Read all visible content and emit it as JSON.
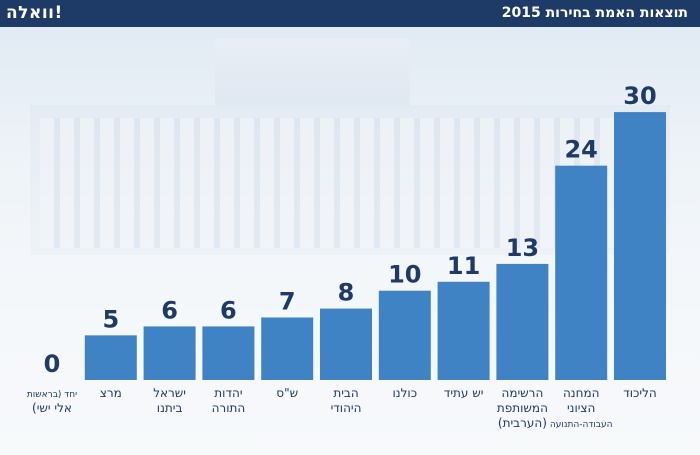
{
  "header": {
    "logo": "וואלה!",
    "title": "תוצאות האמת בחירות 2015"
  },
  "colors": {
    "bar": "#3f83c4",
    "header_bg": "#1e3a66",
    "value_text": "#1e3a66"
  },
  "chart_data": {
    "type": "bar",
    "title": "תוצאות האמת בחירות 2015",
    "xlabel": "",
    "ylabel": "",
    "ylim": [
      0,
      30
    ],
    "grid": false,
    "categories": [
      [
        "יחד (בראשות",
        "אלי ישי)"
      ],
      [
        "מרצ"
      ],
      [
        "ישראל",
        "ביתנו"
      ],
      [
        "יהדות",
        "התורה"
      ],
      [
        "ש\"ס"
      ],
      [
        "הבית",
        "היהודי"
      ],
      [
        "כולנו"
      ],
      [
        "יש עתיד"
      ],
      [
        "הרשימה",
        "המשותפת",
        "(הערבית)"
      ],
      [
        "המחנה",
        "הציוני",
        "העבודה-התנועה"
      ],
      [
        "הליכוד"
      ]
    ],
    "values": [
      0,
      5,
      6,
      6,
      7,
      8,
      10,
      11,
      13,
      24,
      30
    ]
  }
}
